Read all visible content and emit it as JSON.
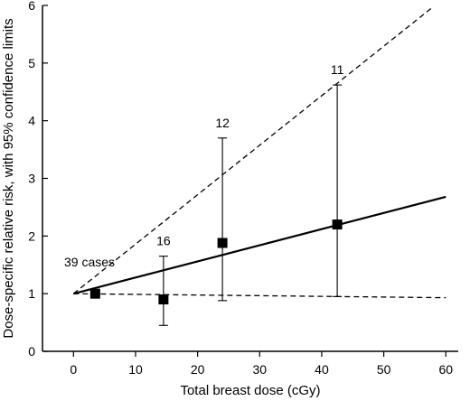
{
  "chart_data": {
    "type": "scatter",
    "title": "",
    "xlabel": "Total breast dose (cGy)",
    "ylabel": "Dose-specific relative risk, with 95% confidence limits",
    "xlim": [
      -5,
      62
    ],
    "ylim": [
      0,
      6
    ],
    "xticks": [
      0,
      10,
      20,
      30,
      40,
      50,
      60
    ],
    "yticks": [
      0,
      1,
      2,
      3,
      4,
      5,
      6
    ],
    "points": [
      {
        "x": 3.5,
        "y": 1.0,
        "lower": 1.0,
        "upper": 1.0,
        "label": "39 cases"
      },
      {
        "x": 14.5,
        "y": 0.9,
        "lower": 0.45,
        "upper": 1.65,
        "label": "16"
      },
      {
        "x": 24.0,
        "y": 1.88,
        "lower": 0.88,
        "upper": 3.7,
        "label": "12"
      },
      {
        "x": 42.5,
        "y": 2.2,
        "lower": 0.95,
        "upper": 4.62,
        "label": "11"
      }
    ],
    "fit_line": {
      "x": [
        0,
        60
      ],
      "y": [
        1.0,
        2.68
      ]
    },
    "ci_upper_line": {
      "x": [
        0,
        58
      ],
      "y": [
        1.0,
        5.98
      ]
    },
    "ci_lower_line": {
      "x": [
        0,
        60
      ],
      "y": [
        1.0,
        0.93
      ]
    },
    "grid": false,
    "legend": "none"
  }
}
